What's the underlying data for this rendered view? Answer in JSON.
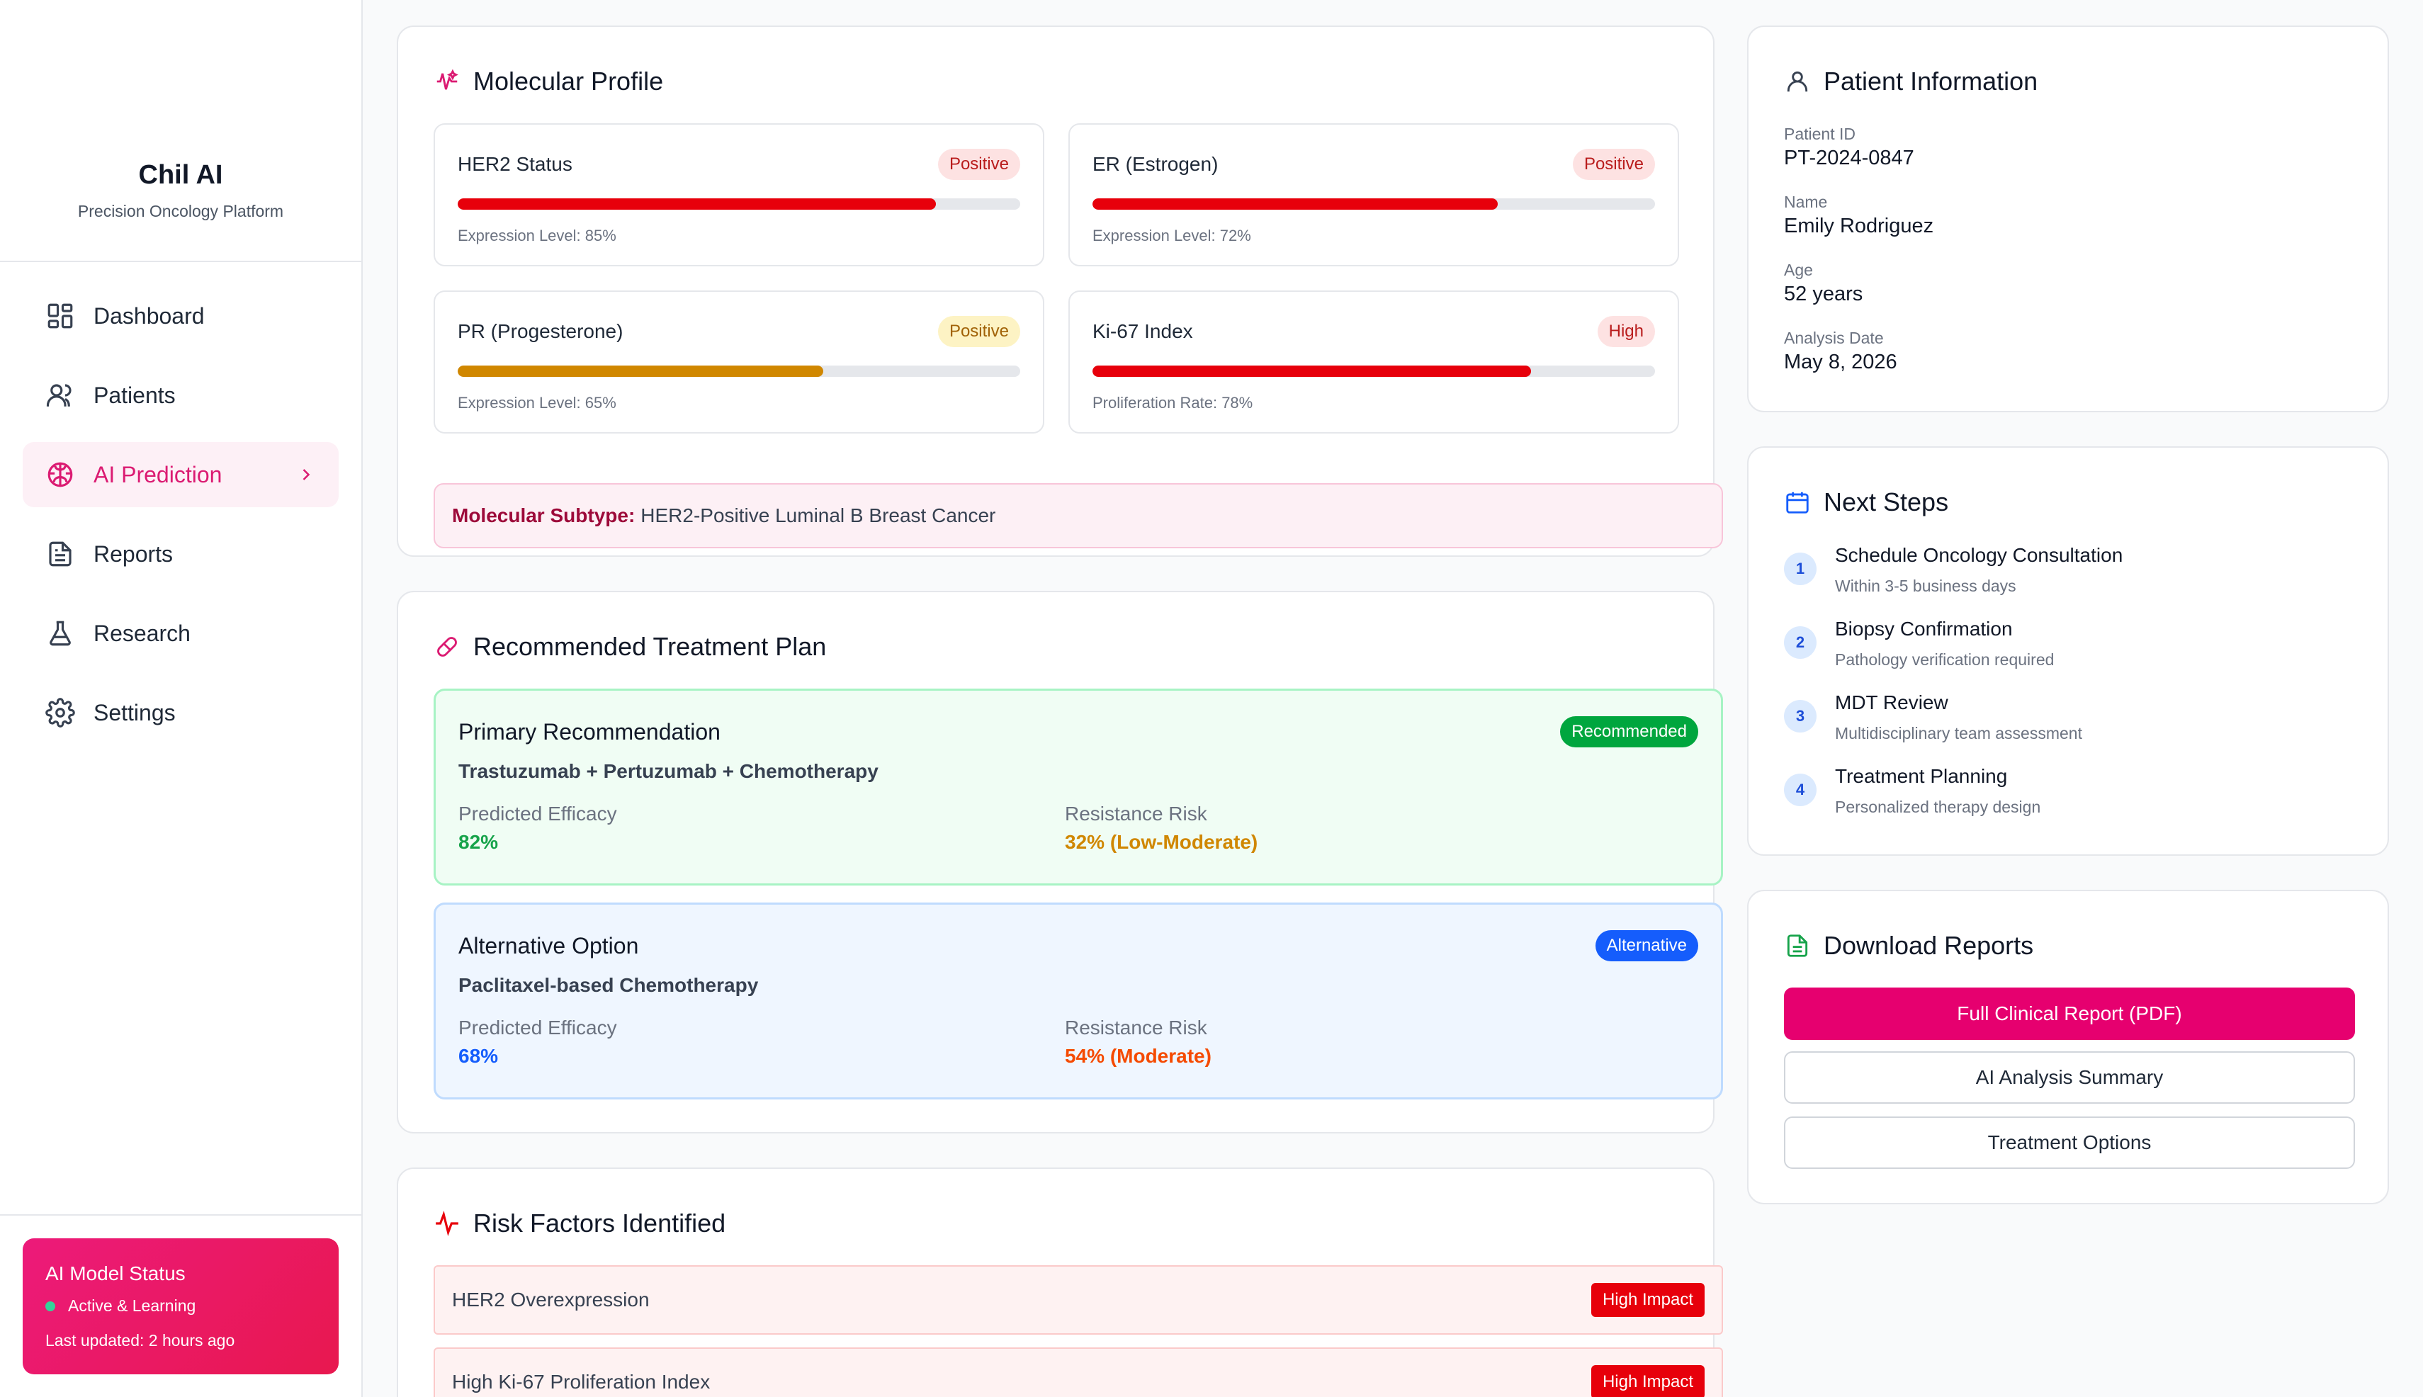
{
  "sidebar": {
    "brand_title": "Chil AI",
    "brand_subtitle": "Precision Oncology Platform",
    "nav": [
      {
        "label": "Dashboard",
        "icon": "dashboard-icon"
      },
      {
        "label": "Patients",
        "icon": "users-icon"
      },
      {
        "label": "AI Prediction",
        "icon": "brain-icon",
        "active": true
      },
      {
        "label": "Reports",
        "icon": "document-icon"
      },
      {
        "label": "Research",
        "icon": "flask-icon"
      },
      {
        "label": "Settings",
        "icon": "gear-icon"
      }
    ],
    "model_status": {
      "title": "AI Model Status",
      "state": "Active & Learning",
      "updated": "Last updated: 2 hours ago"
    }
  },
  "molecular": {
    "title": "Molecular Profile",
    "markers": [
      {
        "name": "HER2 Status",
        "badge": "Positive",
        "level": 0.85,
        "color": "#e7000b",
        "footer": "Expression Level: 85%"
      },
      {
        "name": "ER (Estrogen)",
        "badge": "Positive",
        "level": 0.72,
        "color": "#e7000b",
        "footer": "Expression Level: 72%"
      },
      {
        "name": "PR (Progesterone)",
        "badge": "Positive",
        "level": 0.65,
        "color": "#d08700",
        "footer": "Expression Level: 65%"
      },
      {
        "name": "Ki-67 Index",
        "badge": "High",
        "level": 0.78,
        "color": "#e7000b",
        "footer": "Proliferation Rate: 78%"
      }
    ],
    "subtype_label": "Molecular Subtype:",
    "subtype_value": "HER2-Positive Luminal B Breast Cancer"
  },
  "treatment": {
    "title": "Recommended Treatment Plan",
    "primary": {
      "title": "Primary Recommendation",
      "badge": "Recommended",
      "drug": "Trastuzumab + Pertuzumab + Chemotherapy",
      "efficacy_label": "Predicted Efficacy",
      "efficacy": "82%",
      "risk_label": "Resistance Risk",
      "risk": "32% (Low-Moderate)"
    },
    "alternative": {
      "title": "Alternative Option",
      "badge": "Alternative",
      "drug": "Paclitaxel-based Chemotherapy",
      "efficacy_label": "Predicted Efficacy",
      "efficacy": "68%",
      "risk_label": "Resistance Risk",
      "risk": "54% (Moderate)"
    }
  },
  "risk": {
    "title": "Risk Factors Identified",
    "items": [
      {
        "label": "HER2 Overexpression",
        "badge": "High Impact"
      },
      {
        "label": "High Ki-67 Proliferation Index",
        "badge": "High Impact"
      }
    ]
  },
  "patient": {
    "title": "Patient Information",
    "fields": [
      {
        "label": "Patient ID",
        "value": "PT-2024-0847"
      },
      {
        "label": "Name",
        "value": "Emily Rodriguez"
      },
      {
        "label": "Age",
        "value": "52 years"
      },
      {
        "label": "Analysis Date",
        "value": "May 8, 2026"
      }
    ]
  },
  "next_steps": {
    "title": "Next Steps",
    "steps": [
      {
        "num": "1",
        "title": "Schedule Oncology Consultation",
        "sub": "Within 3-5 business days"
      },
      {
        "num": "2",
        "title": "Biopsy Confirmation",
        "sub": "Pathology verification required"
      },
      {
        "num": "3",
        "title": "MDT Review",
        "sub": "Multidisciplinary team assessment"
      },
      {
        "num": "4",
        "title": "Treatment Planning",
        "sub": "Personalized therapy design"
      }
    ]
  },
  "downloads": {
    "title": "Download Reports",
    "buttons": [
      "Full Clinical Report (PDF)",
      "AI Analysis Summary",
      "Treatment Options"
    ]
  },
  "colors": {
    "brand": "#e6006f",
    "positive_red": "#e7000b",
    "warning_yellow": "#d08700",
    "success_green": "#16a34a",
    "info_blue": "#155dfc"
  }
}
